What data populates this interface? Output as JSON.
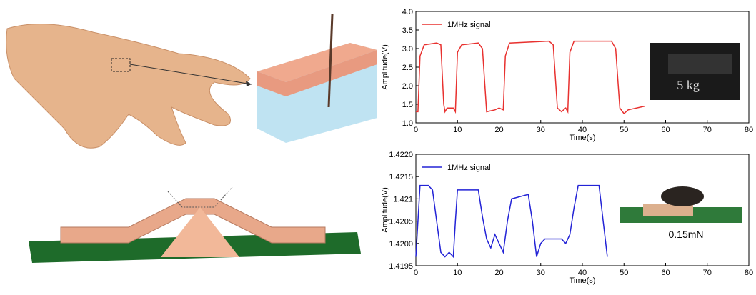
{
  "chart_data": [
    {
      "type": "line",
      "xlabel": "Time(s)",
      "ylabel": "Amplitude(V)",
      "annotation": "5 kg",
      "xlim": [
        0,
        80
      ],
      "xticks": [
        0,
        10,
        20,
        30,
        40,
        50,
        60,
        70,
        80
      ],
      "ylim": [
        1,
        4
      ],
      "yticks": [
        {
          "value": 1,
          "label": "1.0"
        },
        1.5,
        {
          "value": 2,
          "label": "2.0"
        },
        2.5,
        {
          "value": 3,
          "label": "3.0"
        },
        3.5,
        {
          "value": 4,
          "label": "4.0"
        }
      ],
      "series": [
        {
          "name": "1MHz signal",
          "color": "#e8312f",
          "x": [
            0,
            0.5,
            1,
            2,
            5,
            6,
            6.7,
            7,
            7.5,
            9,
            9.5,
            10,
            11,
            15,
            16,
            17,
            19,
            20,
            21,
            21.5,
            22.5,
            32,
            33,
            34,
            35,
            36,
            36.5,
            37,
            38,
            47,
            48,
            49,
            50,
            51,
            55
          ],
          "values": [
            1.3,
            1.3,
            2.8,
            3.1,
            3.15,
            3.1,
            1.5,
            1.3,
            1.4,
            1.4,
            1.3,
            2.9,
            3.1,
            3.15,
            3.0,
            1.3,
            1.35,
            1.4,
            1.35,
            2.8,
            3.15,
            3.2,
            3.1,
            1.4,
            1.3,
            1.4,
            1.3,
            2.9,
            3.2,
            3.2,
            3.0,
            1.4,
            1.25,
            1.35,
            1.45
          ]
        }
      ]
    },
    {
      "type": "line",
      "xlabel": "Time(s)",
      "ylabel": "Amplitude(V)",
      "annotation": "0.15mN",
      "xlim": [
        0,
        80
      ],
      "xticks": [
        0,
        10,
        20,
        30,
        40,
        50,
        60,
        70,
        80
      ],
      "ylim": [
        1.4195,
        1.422
      ],
      "yticks": [
        1.4195,
        {
          "value": 1.42,
          "label": "1.4200"
        },
        1.4205,
        1.421,
        1.4215,
        {
          "value": 1.422,
          "label": "1.4220"
        }
      ],
      "series": [
        {
          "name": "1MHz signal",
          "color": "#2323d6",
          "x": [
            0,
            1,
            3,
            4,
            5,
            6,
            7,
            8,
            9,
            9.5,
            10,
            15,
            16,
            17,
            18,
            19,
            20,
            21,
            22,
            23,
            27,
            28,
            29,
            30,
            31,
            35,
            36,
            37,
            38,
            39,
            44,
            45,
            46
          ],
          "values": [
            1.4197,
            1.4213,
            1.4213,
            1.4212,
            1.4205,
            1.4198,
            1.4197,
            1.4198,
            1.4197,
            1.4205,
            1.4212,
            1.4212,
            1.4206,
            1.4201,
            1.4199,
            1.4202,
            1.42,
            1.4198,
            1.4205,
            1.421,
            1.4211,
            1.4205,
            1.4197,
            1.42,
            1.4201,
            1.4201,
            1.42,
            1.4202,
            1.4208,
            1.4213,
            1.4213,
            1.4205,
            1.4197
          ]
        }
      ]
    }
  ]
}
